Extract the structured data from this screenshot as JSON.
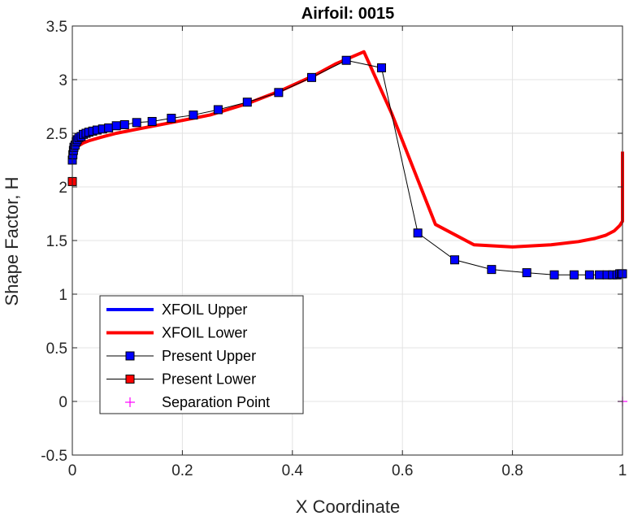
{
  "chart_data": {
    "type": "line",
    "title": "Airfoil: 0015",
    "xlabel": "X Coordinate",
    "ylabel": "Shape Factor, H",
    "xlim": [
      0,
      1
    ],
    "ylim": [
      -0.5,
      3.5
    ],
    "xticks": [
      0,
      0.2,
      0.4,
      0.6,
      0.8,
      1
    ],
    "xtick_labels": [
      "0",
      "0.2",
      "0.4",
      "0.6",
      "0.8",
      "1"
    ],
    "yticks": [
      -0.5,
      0,
      0.5,
      1,
      1.5,
      2,
      2.5,
      3,
      3.5
    ],
    "ytick_labels": [
      "-0.5",
      "0",
      "0.5",
      "1",
      "1.5",
      "2",
      "2.5",
      "3",
      "3.5"
    ],
    "grid": true,
    "legend_position": "bottom-left",
    "series": [
      {
        "name": "XFOIL Upper",
        "color": "#0000ff",
        "style": "line",
        "x": [],
        "y": []
      },
      {
        "name": "XFOIL Lower",
        "color": "#ff0000",
        "style": "line",
        "x": [
          0.0,
          0.002,
          0.005,
          0.01,
          0.02,
          0.03,
          0.05,
          0.08,
          0.12,
          0.18,
          0.25,
          0.32,
          0.38,
          0.44,
          0.48,
          0.53,
          0.58,
          0.62,
          0.66,
          0.73,
          0.8,
          0.87,
          0.92,
          0.95,
          0.97,
          0.985,
          0.995,
          1.0,
          1.0
        ],
        "y": [
          2.28,
          2.33,
          2.36,
          2.38,
          2.41,
          2.43,
          2.46,
          2.5,
          2.54,
          2.6,
          2.67,
          2.78,
          2.9,
          3.04,
          3.15,
          3.26,
          2.69,
          2.17,
          1.65,
          1.46,
          1.44,
          1.46,
          1.49,
          1.52,
          1.55,
          1.59,
          1.64,
          1.68,
          2.33
        ]
      },
      {
        "name": "Present Upper",
        "color": "#0000ff",
        "style": "line-square",
        "x": [
          0.0,
          0.001,
          0.002,
          0.003,
          0.005,
          0.007,
          0.009,
          0.012,
          0.016,
          0.02,
          0.025,
          0.03,
          0.037,
          0.045,
          0.055,
          0.066,
          0.08,
          0.095,
          0.117,
          0.145,
          0.18,
          0.22,
          0.265,
          0.318,
          0.375,
          0.435,
          0.498,
          0.562,
          0.628,
          0.695,
          0.762,
          0.826,
          0.876,
          0.912,
          0.94,
          0.958,
          0.972,
          0.982,
          0.99,
          0.995,
          0.998,
          1.0
        ],
        "y": [
          2.25,
          2.3,
          2.34,
          2.37,
          2.39,
          2.42,
          2.44,
          2.46,
          2.47,
          2.49,
          2.5,
          2.51,
          2.52,
          2.53,
          2.54,
          2.55,
          2.57,
          2.58,
          2.6,
          2.61,
          2.64,
          2.67,
          2.72,
          2.79,
          2.88,
          3.02,
          3.18,
          3.11,
          1.57,
          1.32,
          1.23,
          1.2,
          1.18,
          1.18,
          1.18,
          1.18,
          1.18,
          1.18,
          1.18,
          1.19,
          1.19,
          1.19
        ]
      },
      {
        "name": "Present Lower",
        "color": "#ff0000",
        "style": "line-square",
        "x": [
          0.0
        ],
        "y": [
          2.05
        ]
      },
      {
        "name": "Separation Point",
        "color": "#ff00ff",
        "style": "marker-plus",
        "x": [
          1.0
        ],
        "y": [
          0.0
        ]
      }
    ]
  }
}
